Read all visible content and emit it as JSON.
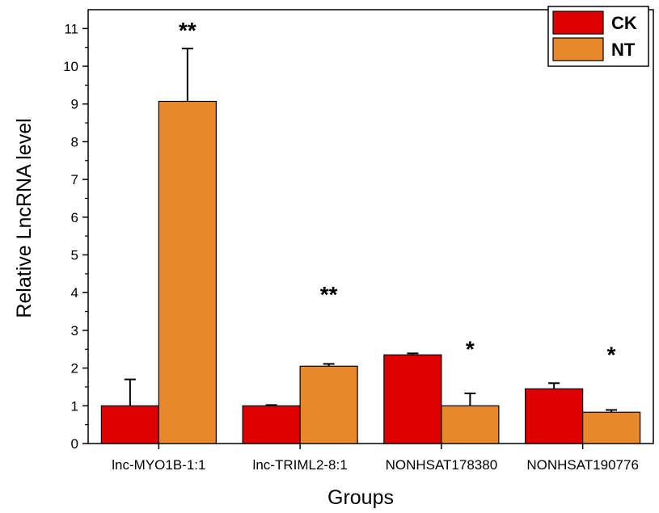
{
  "chart_data": {
    "type": "bar",
    "xlabel": "Groups",
    "ylabel": "Relative LncRNA level",
    "ylim": [
      0,
      11.5
    ],
    "yticks": [
      0,
      1,
      2,
      3,
      4,
      5,
      6,
      7,
      8,
      9,
      10,
      11
    ],
    "categories": [
      "lnc-MYO1B-1:1",
      "lnc-TRIML2-8:1",
      "NONHSAT178380",
      "NONHSAT190776"
    ],
    "series": [
      {
        "name": "CK",
        "color": "#dd0000",
        "values": [
          1.0,
          1.0,
          2.35,
          1.45
        ],
        "errors": [
          0.7,
          0.02,
          0.04,
          0.15
        ]
      },
      {
        "name": "NT",
        "color": "#e8882a",
        "values": [
          9.07,
          2.05,
          1.0,
          0.83
        ],
        "errors": [
          1.4,
          0.06,
          0.33,
          0.06
        ]
      }
    ],
    "annotations": [
      {
        "category": 0,
        "text": "**",
        "y": 11.05
      },
      {
        "category": 1,
        "text": "**",
        "y": 4.05
      },
      {
        "category": 2,
        "text": "*",
        "y": 2.6
      },
      {
        "category": 3,
        "text": "*",
        "y": 2.45
      }
    ],
    "legend_position": "top-right",
    "grid": false
  }
}
